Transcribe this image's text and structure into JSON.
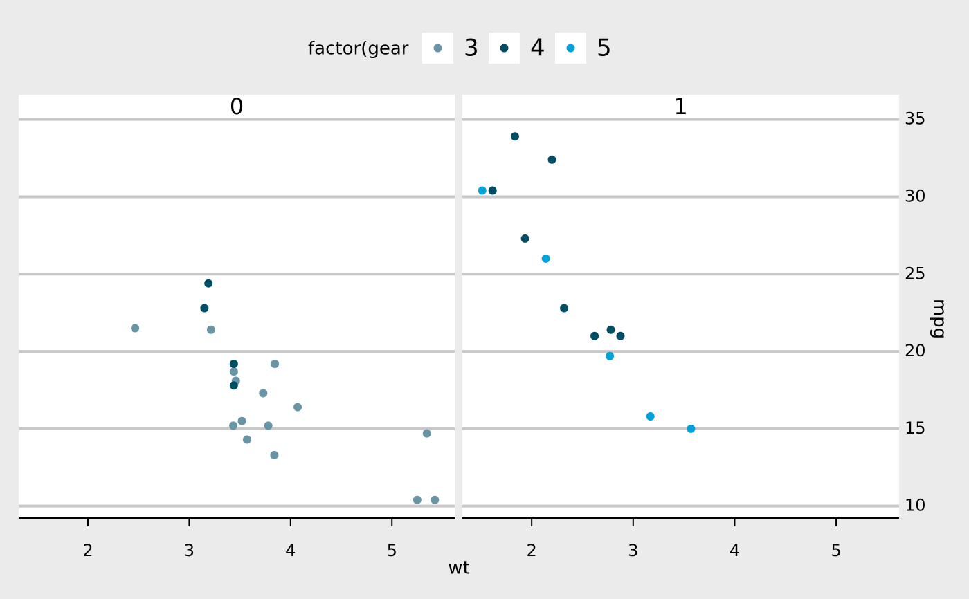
{
  "chart_data": {
    "type": "scatter",
    "x_label": "wt",
    "y_label": "mpg",
    "legend": {
      "title": "factor(gear",
      "position": "top",
      "entries": [
        {
          "name": "3",
          "color": "#6794a7"
        },
        {
          "name": "4",
          "color": "#014d64"
        },
        {
          "name": "5",
          "color": "#01a2d9"
        }
      ]
    },
    "xlim": [
      1.317,
      5.62
    ],
    "xticks": [
      2,
      3,
      4,
      5
    ],
    "ylim": [
      9.225,
      35.075
    ],
    "yticks": [
      10,
      15,
      20,
      25,
      30,
      35
    ],
    "grid": true,
    "facets": [
      {
        "title": "0",
        "series": [
          {
            "x": [
              3.215,
              3.44,
              3.46,
              3.57,
              4.07,
              3.73,
              3.78,
              5.25,
              5.424,
              5.345,
              2.465,
              3.52,
              3.435,
              3.84,
              3.845
            ],
            "y": [
              21.4,
              18.7,
              18.1,
              14.3,
              16.4,
              17.3,
              15.2,
              10.4,
              10.4,
              14.7,
              21.5,
              15.5,
              15.2,
              13.3,
              19.2
            ]
          },
          {
            "x": [
              3.19,
              3.15,
              3.44,
              3.44
            ],
            "y": [
              24.4,
              22.8,
              19.2,
              17.8
            ]
          },
          {
            "x": [],
            "y": []
          }
        ]
      },
      {
        "title": "1",
        "series": [
          {
            "x": [],
            "y": []
          },
          {
            "x": [
              2.62,
              2.875,
              2.32,
              2.2,
              1.615,
              1.835,
              1.935,
              2.78
            ],
            "y": [
              21,
              21,
              22.8,
              32.4,
              30.4,
              33.9,
              27.3,
              21.4
            ]
          },
          {
            "x": [
              2.14,
              1.513,
              3.17,
              2.77,
              3.57
            ],
            "y": [
              26,
              30.4,
              15.8,
              19.7,
              15
            ]
          }
        ]
      }
    ]
  }
}
